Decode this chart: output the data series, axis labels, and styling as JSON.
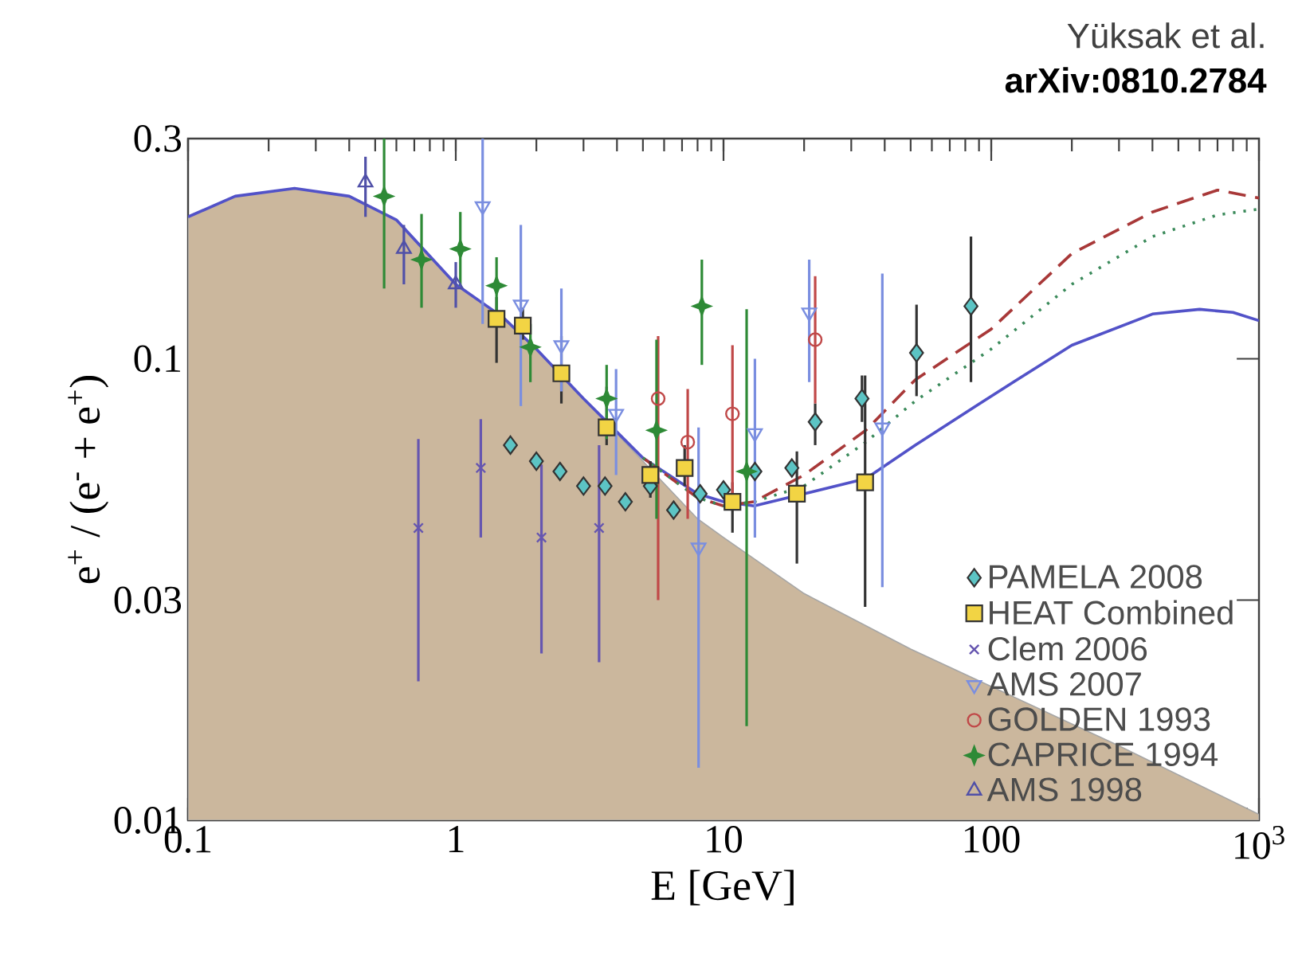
{
  "chart_data": {
    "type": "scatter",
    "xlabel": "E  [GeV]",
    "ylabel": "e$^{+}$ / (e$^{-}$ + e$^{+}$)",
    "annotations": [
      "Yüksak et al.",
      "arXiv:0810.2784"
    ],
    "log": "xy",
    "xlim": [
      0.1,
      1000
    ],
    "ylim": [
      0.01,
      0.3
    ],
    "xticks": [
      0.1,
      1,
      10,
      100,
      {
        "value": 1000,
        "label": "10$^{3}$"
      }
    ],
    "yticks": [
      0.01,
      0.03,
      0.1,
      0.3
    ],
    "legend": "bottom right",
    "series": [
      {
        "name": "PAMELA 2008",
        "marker": "diamond",
        "color": "#5cc4c4",
        "x": [
          1.6,
          2.0,
          2.45,
          3.0,
          3.61,
          4.3,
          5.33,
          6.51,
          8.18,
          10.0,
          13.1,
          18.0,
          22.0,
          32.9,
          52.6,
          84
        ],
        "values": [
          0.065,
          0.06,
          0.057,
          0.053,
          0.053,
          0.049,
          0.053,
          0.047,
          0.051,
          0.052,
          0.057,
          0.058,
          0.073,
          0.082,
          0.103,
          0.13
        ],
        "errors": [
          null,
          null,
          null,
          null,
          null,
          null,
          null,
          null,
          null,
          null,
          null,
          null,
          [
            0.065,
            0.08
          ],
          [
            0.073,
            0.092
          ],
          [
            0.083,
            0.131
          ],
          [
            0.089,
            0.184
          ]
        ]
      },
      {
        "name": "HEAT Combined",
        "marker": "square",
        "color": "#f2d444",
        "x": [
          1.42,
          1.78,
          2.48,
          3.66,
          5.33,
          7.16,
          10.8,
          18.8,
          33.8
        ],
        "values": [
          0.122,
          0.118,
          0.093,
          0.071,
          0.056,
          0.058,
          0.049,
          0.051,
          0.054
        ],
        "errors": [
          [
            0.098,
            0.136
          ],
          [
            0.11,
            0.129
          ],
          [
            0.08,
            0.112
          ],
          [
            0.065,
            0.087
          ],
          [
            0.05,
            0.06
          ],
          [
            0.053,
            0.065
          ],
          [
            0.042,
            0.054
          ],
          [
            0.036,
            0.063
          ],
          [
            0.029,
            0.092
          ]
        ]
      },
      {
        "name": "Clem 2006",
        "marker": "cross",
        "color": "#6656b0",
        "x": [
          0.725,
          1.24,
          2.09,
          3.43
        ],
        "values": [
          0.043,
          0.058,
          0.041,
          0.043
        ],
        "errors": [
          [
            0.02,
            0.067
          ],
          [
            0.041,
            0.074
          ],
          [
            0.023,
            0.059
          ],
          [
            0.022,
            0.065
          ]
        ]
      },
      {
        "name": "AMS 2007",
        "marker": "triangle-down",
        "color": "#7a8ee0",
        "x": [
          1.26,
          1.75,
          2.48,
          3.97,
          8.07,
          13.1,
          20.9,
          39.2
        ],
        "values": [
          0.214,
          0.131,
          0.107,
          0.076,
          0.039,
          0.069,
          0.126,
          0.071
        ],
        "errors": [
          [
            0.119,
            0.3
          ],
          [
            0.079,
            0.195
          ],
          [
            0.085,
            0.142
          ],
          [
            0.056,
            0.095
          ],
          [
            0.013,
            0.071
          ],
          [
            0.041,
            0.1
          ],
          [
            0.089,
            0.164
          ],
          [
            0.032,
            0.153
          ]
        ]
      },
      {
        "name": "GOLDEN 1993",
        "marker": "circle",
        "color": "#c04848",
        "x": [
          5.7,
          7.35,
          10.8,
          22.0
        ],
        "values": [
          0.082,
          0.066,
          0.076,
          0.11
        ],
        "errors": [
          [
            0.03,
            0.112
          ],
          [
            0.045,
            0.086
          ],
          [
            0.048,
            0.107
          ],
          [
            0.08,
            0.151
          ]
        ]
      },
      {
        "name": "CAPRICE 1994",
        "marker": "star",
        "color": "#2e8a36",
        "x": [
          0.54,
          0.745,
          1.04,
          1.42,
          1.9,
          3.66,
          5.62,
          8.3,
          12.2
        ],
        "values": [
          0.225,
          0.164,
          0.173,
          0.144,
          0.106,
          0.082,
          0.07,
          0.13,
          0.057
        ],
        "errors": [
          [
            0.142,
            0.3
          ],
          [
            0.129,
            0.206
          ],
          [
            0.144,
            0.208
          ],
          [
            0.119,
            0.166
          ],
          [
            0.089,
            0.119
          ],
          [
            0.067,
            0.097
          ],
          [
            0.045,
            0.11
          ],
          [
            0.097,
            0.164
          ],
          [
            0.016,
            0.128
          ]
        ]
      },
      {
        "name": "AMS 1998",
        "marker": "triangle",
        "color": "#5050a8",
        "x": [
          0.46,
          0.64,
          1.0
        ],
        "values": [
          0.241,
          0.173,
          0.145
        ],
        "errors": [
          [
            0.203,
            0.274
          ],
          [
            0.145,
            0.195
          ],
          [
            0.129,
            0.162
          ]
        ]
      },
      {
        "type": "area",
        "color": "#cbb79d",
        "x": [
          0.1,
          0.15,
          0.25,
          0.4,
          0.6,
          1,
          1.5,
          2,
          3,
          5,
          8,
          10,
          20,
          50,
          100,
          300,
          1000
        ],
        "values": [
          0.203,
          0.225,
          0.234,
          0.225,
          0.2,
          0.145,
          0.123,
          0.105,
          0.082,
          0.06,
          0.045,
          0.041,
          0.031,
          0.0235,
          0.0195,
          0.0145,
          0.0103
        ]
      },
      {
        "type": "line",
        "line_style": "solid",
        "color": "#5252c8",
        "x": [
          0.1,
          0.15,
          0.25,
          0.4,
          0.6,
          1,
          1.5,
          2,
          3,
          5,
          8,
          10,
          13,
          20,
          34,
          52,
          100,
          200,
          400,
          600,
          800,
          1000
        ],
        "values": [
          0.203,
          0.225,
          0.234,
          0.225,
          0.2,
          0.145,
          0.123,
          0.105,
          0.082,
          0.061,
          0.051,
          0.049,
          0.048,
          0.051,
          0.055,
          0.065,
          0.083,
          0.107,
          0.125,
          0.128,
          0.126,
          0.121
        ]
      },
      {
        "type": "line",
        "line_style": "dashed",
        "color": "#a83838",
        "x": [
          5,
          8,
          10,
          13,
          20,
          34,
          52,
          100,
          200,
          400,
          700,
          1000
        ],
        "values": [
          0.061,
          0.05,
          0.048,
          0.049,
          0.056,
          0.07,
          0.09,
          0.116,
          0.169,
          0.208,
          0.232,
          0.223
        ]
      },
      {
        "type": "line",
        "line_style": "dotted",
        "color": "#3a8a5a",
        "x": [
          5,
          8,
          10,
          13,
          20,
          34,
          52,
          100,
          200,
          400,
          700,
          1000
        ],
        "values": [
          0.061,
          0.05,
          0.048,
          0.049,
          0.053,
          0.066,
          0.081,
          0.105,
          0.145,
          0.184,
          0.205,
          0.211
        ]
      }
    ]
  }
}
